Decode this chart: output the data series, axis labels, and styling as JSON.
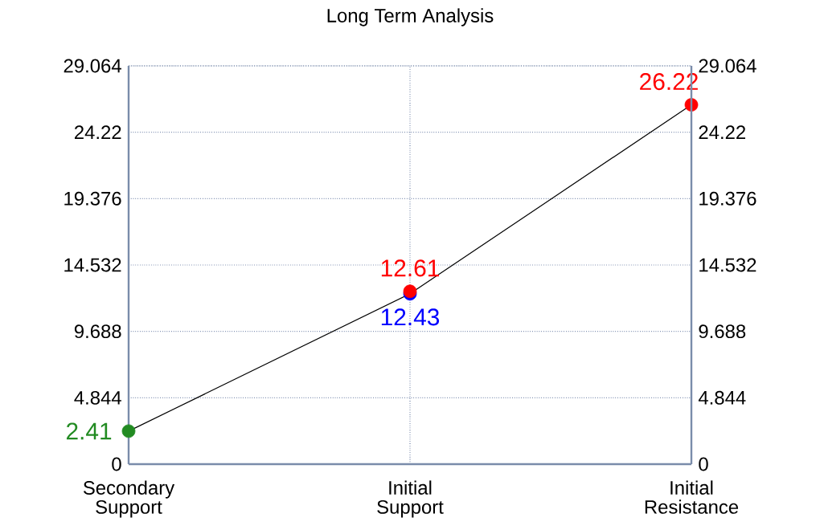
{
  "chart_data": {
    "type": "line",
    "title": "Long Term Analysis",
    "categories": [
      "Secondary Support",
      "Initial Support",
      "Initial Resistance"
    ],
    "series": [
      {
        "color": "#000000",
        "marker": "none",
        "values": [
          2.41,
          12.43,
          26.22
        ]
      },
      {
        "type": "scatter",
        "color": "#228b22",
        "values": [
          2.41,
          null,
          null
        ],
        "value_labels": [
          "2.41",
          null,
          null
        ]
      },
      {
        "type": "scatter",
        "color": "#0000ff",
        "values": [
          null,
          12.43,
          null
        ],
        "value_labels": [
          null,
          "12.43",
          null
        ]
      },
      {
        "type": "scatter",
        "color": "#ff0000",
        "values": [
          null,
          12.61,
          26.22
        ],
        "value_labels": [
          null,
          "12.61",
          "26.22"
        ]
      }
    ],
    "marker": "circle",
    "grid": true,
    "ylim": [
      0,
      29.064
    ],
    "yticks": [
      0,
      4.844,
      9.688,
      14.532,
      19.376,
      24.22,
      29.064
    ],
    "y2lim": [
      0,
      29.064
    ],
    "y2ticks": [
      0,
      4.844,
      9.688,
      14.532,
      19.376,
      24.22,
      29.064
    ]
  }
}
